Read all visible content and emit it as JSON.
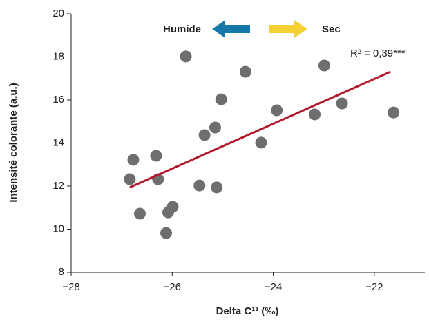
{
  "chart_data": {
    "type": "scatter",
    "x_label": "Delta C¹³ (‰)",
    "y_label": "Intensité colorante (a.u.)",
    "annotations": [
      "Humide",
      "Sec",
      "R² = 0,39***"
    ],
    "xlim": [
      -28,
      -21
    ],
    "ylim": [
      8,
      20
    ],
    "xticks": [
      {
        "value": -28,
        "label": "−28"
      },
      {
        "value": -26,
        "label": "−26"
      },
      {
        "value": -24,
        "label": "−24"
      },
      {
        "value": -22,
        "label": "−22"
      }
    ],
    "yticks": [
      8,
      10,
      12,
      14,
      16,
      18,
      20
    ],
    "grid": false,
    "color": "#6e6e6e",
    "x": [
      -26.84,
      -26.77,
      -26.64,
      -26.32,
      -26.28,
      -26.08,
      -25.99,
      -26.12,
      -25.73,
      -25.46,
      -25.36,
      -25.15,
      -25.12,
      -25.03,
      -24.55,
      -24.24,
      -23.93,
      -23.18,
      -22.99,
      -22.64,
      -21.62
    ],
    "values": [
      12.32,
      13.22,
      10.72,
      13.41,
      12.32,
      10.78,
      11.04,
      9.82,
      18.02,
      12.03,
      14.37,
      14.72,
      11.94,
      16.03,
      17.31,
      14.02,
      15.52,
      15.33,
      17.6,
      15.84,
      15.42
    ],
    "trend": {
      "color": "#b0182c",
      "x": [
        -26.84,
        -21.68
      ],
      "y": [
        11.94,
        17.31
      ]
    }
  }
}
